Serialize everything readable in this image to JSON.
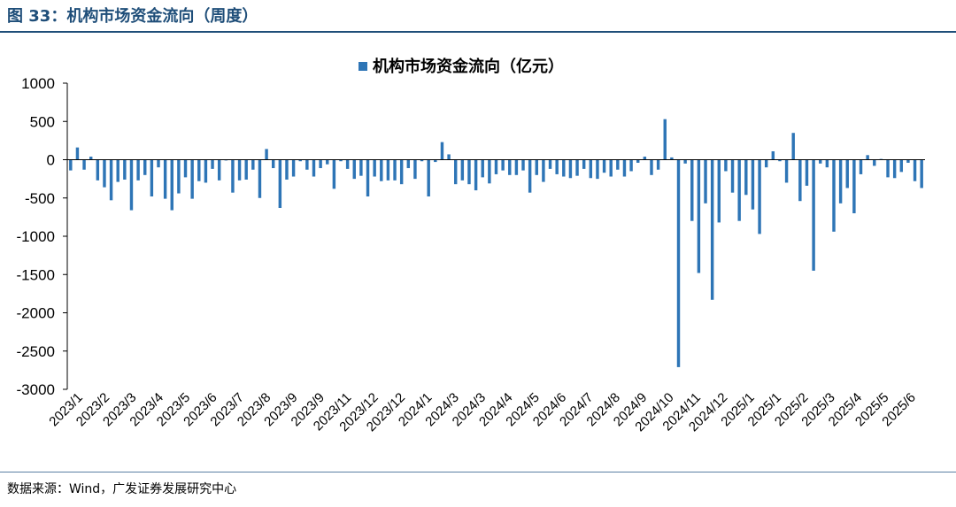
{
  "figure": {
    "title": "图 33：机构市场资金流向（周度）",
    "source": "数据来源：Wind，广发证券发展研究中心"
  },
  "colors": {
    "bar": "#2e75b6",
    "title": "#1f4e79",
    "axis": "#000000"
  },
  "chart_data": {
    "type": "bar",
    "legend": {
      "label": "机构市场资金流向（亿元）",
      "position": "top-center"
    },
    "ylim": [
      -3000,
      1000
    ],
    "yticks": [
      1000,
      500,
      0,
      -500,
      -1000,
      -1500,
      -2000,
      -2500,
      -3000
    ],
    "xticks": [
      "2023/1",
      "2023/2",
      "2023/3",
      "2023/4",
      "2023/5",
      "2023/6",
      "2023/7",
      "2023/8",
      "2023/9",
      "2023/9",
      "2023/11",
      "2023/12",
      "2023/12",
      "2024/1",
      "2024/3",
      "2024/3",
      "2024/4",
      "2024/5",
      "2024/6",
      "2024/7",
      "2024/8",
      "2024/9",
      "2024/10",
      "2024/11",
      "2024/12",
      "2025/1",
      "2025/1",
      "2025/2",
      "2025/3",
      "2025/4",
      "2025/5",
      "2025/6"
    ],
    "grid": false,
    "values": [
      -140,
      160,
      -130,
      40,
      -270,
      -360,
      -530,
      -290,
      -260,
      -660,
      -270,
      -200,
      -480,
      -100,
      -510,
      -660,
      -440,
      -230,
      -510,
      -280,
      -300,
      -120,
      -270,
      -10,
      -430,
      -270,
      -260,
      -130,
      -500,
      140,
      -110,
      -630,
      -260,
      -220,
      -20,
      -130,
      -220,
      -110,
      -60,
      -380,
      -20,
      -120,
      -250,
      -210,
      -480,
      -220,
      -280,
      -270,
      -270,
      -320,
      -110,
      -250,
      -20,
      -480,
      -30,
      230,
      70,
      -320,
      -270,
      -320,
      -400,
      -230,
      -310,
      -190,
      -140,
      -200,
      -200,
      -140,
      -430,
      -200,
      -290,
      -120,
      -190,
      -220,
      -240,
      -210,
      -120,
      -240,
      -250,
      -170,
      -220,
      -130,
      -220,
      -150,
      -40,
      40,
      -200,
      -130,
      530,
      30,
      -2710,
      -50,
      -800,
      -1480,
      -570,
      -1830,
      -820,
      -150,
      -430,
      -800,
      -460,
      -650,
      -970,
      -100,
      110,
      -20,
      -300,
      350,
      -540,
      -340,
      -1450,
      -50,
      -100,
      -940,
      -570,
      -370,
      -700,
      -190,
      60,
      -80,
      10,
      -230,
      -240,
      -160,
      -40,
      -280,
      -370
    ]
  }
}
